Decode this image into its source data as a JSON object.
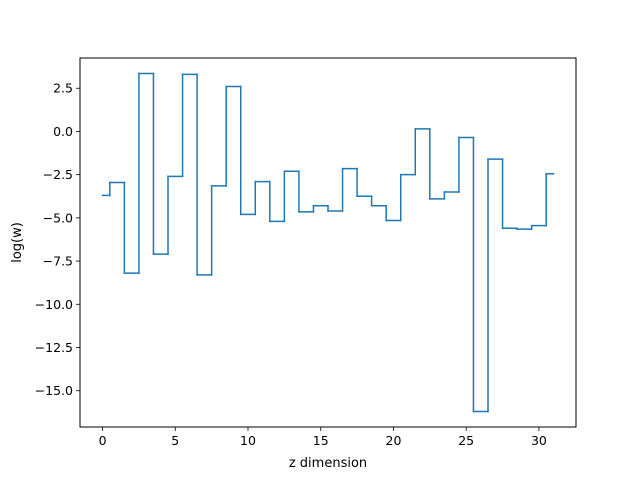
{
  "chart_data": {
    "type": "line",
    "drawstyle": "steps-mid",
    "xlabel": "z dimension",
    "ylabel": "log(w)",
    "xlim": [
      -1.55,
      32.55
    ],
    "ylim": [
      -17.1,
      4.25
    ],
    "xticks": [
      0,
      5,
      10,
      15,
      20,
      25,
      30
    ],
    "xtick_labels": [
      "0",
      "5",
      "10",
      "15",
      "20",
      "25",
      "30"
    ],
    "yticks": [
      2.5,
      0.0,
      -2.5,
      -5.0,
      -7.5,
      -10.0,
      -12.5,
      -15.0
    ],
    "ytick_labels": [
      "2.5",
      "0.0",
      "−2.5",
      "−5.0",
      "−7.5",
      "−10.0",
      "−12.5",
      "−15.0"
    ],
    "grid": false,
    "series": [
      {
        "color": "#1f77b4",
        "x": [
          0,
          1,
          2,
          3,
          4,
          5,
          6,
          7,
          8,
          9,
          10,
          11,
          12,
          13,
          14,
          15,
          16,
          17,
          18,
          19,
          20,
          21,
          22,
          23,
          24,
          25,
          26,
          27,
          28,
          29,
          30,
          31
        ],
        "y": [
          -3.7,
          -2.95,
          -8.2,
          3.35,
          -7.1,
          -2.6,
          3.3,
          -8.3,
          -3.15,
          2.6,
          -4.8,
          -2.9,
          -5.2,
          -2.3,
          -4.65,
          -4.3,
          -4.6,
          -2.15,
          -3.75,
          -4.3,
          -5.15,
          -2.5,
          0.15,
          -3.9,
          -3.5,
          -0.35,
          -16.2,
          -1.6,
          -5.6,
          -5.65,
          -5.45,
          -2.45
        ]
      }
    ]
  }
}
